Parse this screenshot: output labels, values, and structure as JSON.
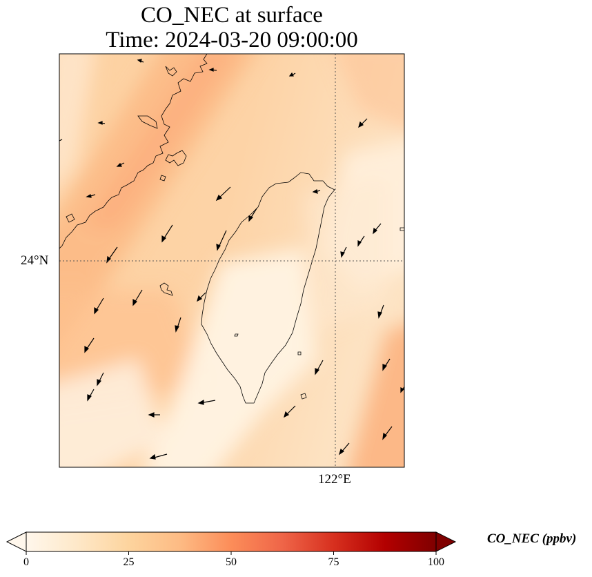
{
  "title": {
    "line1": "CO_NEC at surface",
    "line2": "Time: 2024-03-20 09:00:00"
  },
  "axes": {
    "lat_label": "24°N",
    "lon_label": "122°E"
  },
  "colorbar": {
    "label": "CO_NEC (ppbv)",
    "min": 0,
    "max": 100,
    "ticks": [
      "0",
      "25",
      "50",
      "75",
      "100"
    ],
    "colormap": "OrRd",
    "extend": "both",
    "colors": [
      "#fff7ec",
      "#fee8c8",
      "#fdd49e",
      "#fdbb84",
      "#fc8d59",
      "#ef6548",
      "#d7301f",
      "#b30000",
      "#7f0000"
    ]
  }
}
